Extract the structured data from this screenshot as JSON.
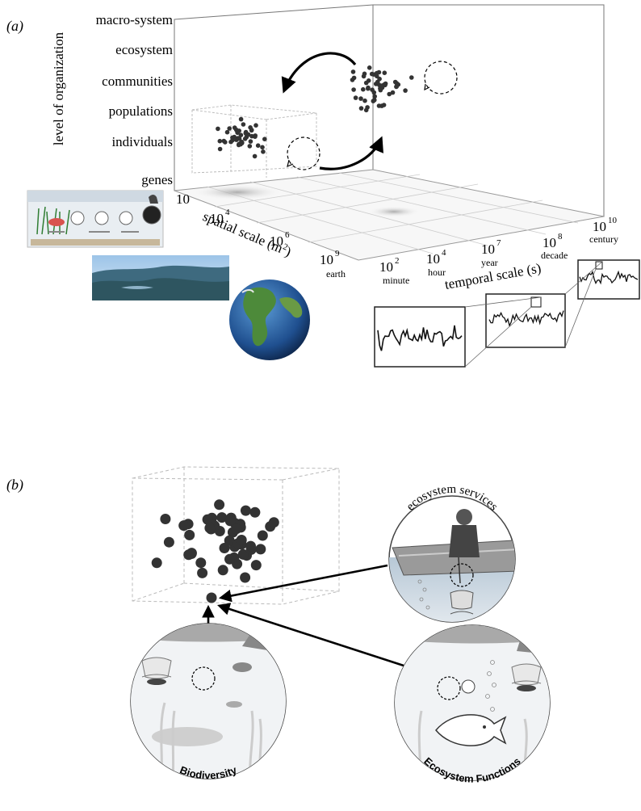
{
  "panel_a": {
    "label": "(a)",
    "y_axis_title": "level of organization",
    "levels": [
      "macro-system",
      "ecosystem",
      "communities",
      "populations",
      "individuals",
      "genes"
    ],
    "spatial_axis": {
      "title": "spatial scale (m",
      "title_sup": "2",
      "title_end": ")",
      "ticks": [
        {
          "base": "10",
          "exp": "",
          "name": ""
        },
        {
          "base": "10",
          "exp": "4",
          "name": ""
        },
        {
          "base": "10",
          "exp": "6",
          "name": ""
        },
        {
          "base": "10",
          "exp": "9",
          "name": "earth"
        }
      ]
    },
    "temporal_axis": {
      "title": "temporal scale (s)",
      "ticks": [
        {
          "base": "10",
          "exp": "2",
          "name": "minute"
        },
        {
          "base": "10",
          "exp": "4",
          "name": "hour"
        },
        {
          "base": "10",
          "exp": "7",
          "name": "year"
        },
        {
          "base": "10",
          "exp": "8",
          "name": "decade"
        },
        {
          "base": "10",
          "exp": "10",
          "name": "century"
        }
      ]
    }
  },
  "panel_b": {
    "label": "(b)",
    "circles": {
      "services": "ecosystem services",
      "biodiversity": "Biodiversity",
      "functions": "Ecosystem Functions"
    }
  },
  "colors": {
    "point": "#3a3a3a",
    "box_line": "#8c8c8c",
    "dashed": "#b8b8b8",
    "water": "#c9cdd2",
    "ocean": "#2a63a8",
    "land": "#4d8a3a"
  }
}
